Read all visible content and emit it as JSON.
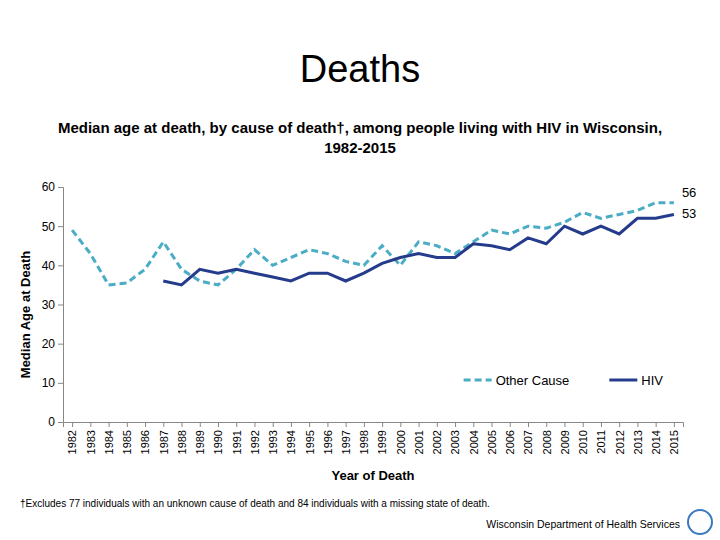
{
  "chart_data": {
    "type": "line",
    "title": "Deaths",
    "subtitle": "Median age at death, by cause of death†, among people living with HIV in Wisconsin, 1982-2015",
    "x_label": "Year of Death",
    "y_label": "Median Age at Death",
    "categories": [
      "1982",
      "1983",
      "1984",
      "1985",
      "1986",
      "1987",
      "1988",
      "1989",
      "1990",
      "1991",
      "1992",
      "1993",
      "1994",
      "1995",
      "1996",
      "1997",
      "1998",
      "1999",
      "2000",
      "2001",
      "2002",
      "2003",
      "2004",
      "2005",
      "2006",
      "2007",
      "2008",
      "2009",
      "2010",
      "2011",
      "2012",
      "2013",
      "2014",
      "2015"
    ],
    "series": [
      {
        "name": "Other Cause",
        "color": "#4bacc6",
        "line_style": "dashed",
        "values": [
          49,
          43,
          35,
          35.5,
          39,
          46,
          39,
          36,
          35,
          39,
          44,
          40,
          42,
          44,
          43,
          41,
          40,
          45,
          40,
          46,
          45,
          43,
          46,
          49,
          48,
          50,
          49.5,
          51,
          53.5,
          52,
          53,
          54,
          56,
          56
        ]
      },
      {
        "name": "HIV",
        "color": "#253c8c",
        "line_style": "solid",
        "values": [
          null,
          null,
          null,
          null,
          null,
          36,
          35,
          39,
          38,
          39,
          38,
          37,
          36,
          38,
          38,
          36,
          38,
          40.5,
          42,
          43,
          42,
          42,
          45.5,
          45,
          44,
          47,
          45.5,
          50,
          48,
          50,
          48,
          52,
          52,
          53
        ]
      }
    ],
    "annotations": [
      "56",
      "53"
    ],
    "ylim": [
      0,
      60
    ],
    "yticks": [
      0,
      10,
      20,
      30,
      40,
      50,
      60
    ],
    "grid": false,
    "legend": "lower right",
    "footnote": "†Excludes 77 individuals with an unknown cause of death and 84 individuals with a missing state of death.",
    "source": "Wisconsin Department of Health Services"
  }
}
